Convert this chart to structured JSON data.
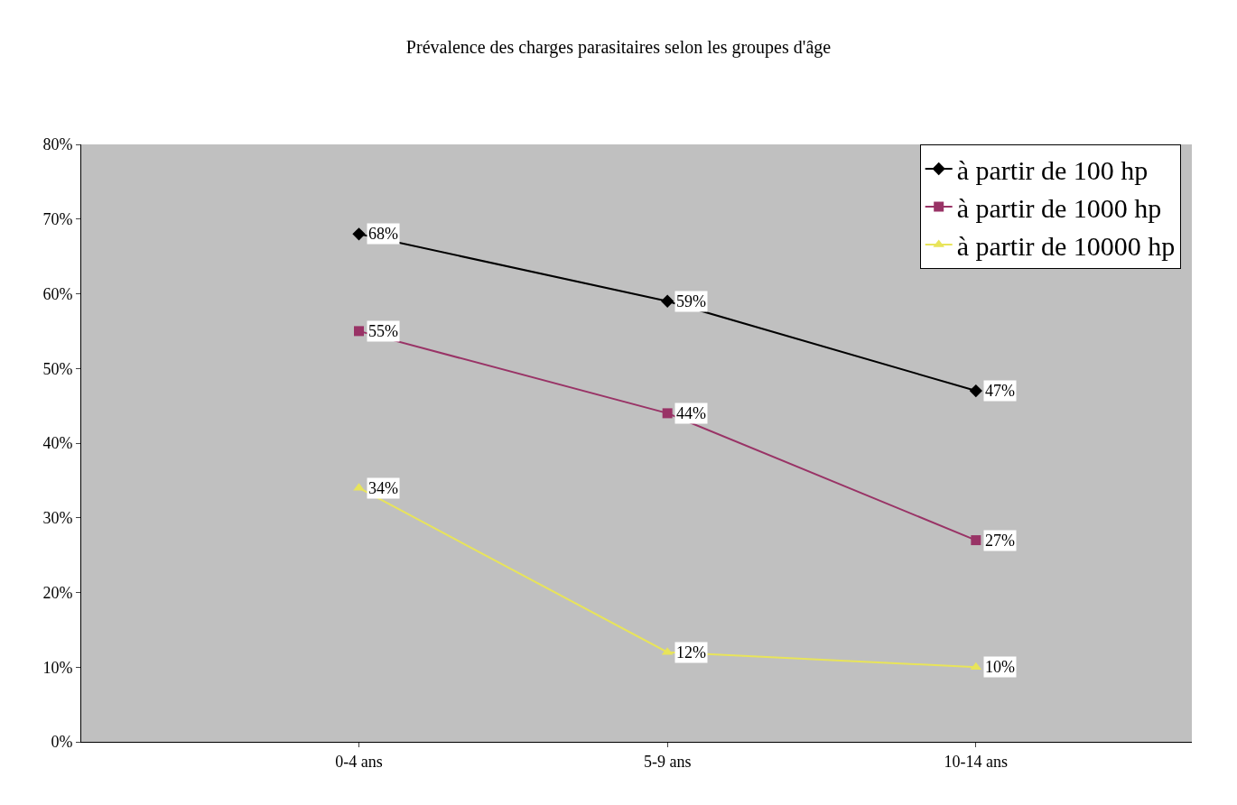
{
  "chart_data": {
    "type": "line",
    "title": "Prévalence des charges parasitaires selon les groupes d'âge",
    "categories": [
      "0-4 ans",
      "5-9 ans",
      "10-14 ans"
    ],
    "series": [
      {
        "name": "à partir de 100 hp",
        "color": "#000000",
        "marker": "diamond",
        "values": [
          68,
          59,
          47
        ],
        "value_labels": [
          "68%",
          "59%",
          "47%"
        ]
      },
      {
        "name": "à partir de 1000 hp",
        "color": "#993366",
        "marker": "square",
        "values": [
          55,
          44,
          27
        ],
        "value_labels": [
          "55%",
          "44%",
          "27%"
        ]
      },
      {
        "name": "à partir de 10000 hp",
        "color": "#e8e45a",
        "marker": "triangle",
        "values": [
          34,
          12,
          10
        ],
        "value_labels": [
          "34%",
          "12%",
          "10%"
        ]
      }
    ],
    "ylim": [
      0,
      80
    ],
    "yticks": [
      {
        "value": 0,
        "label": "0%"
      },
      {
        "value": 10,
        "label": "10%"
      },
      {
        "value": 20,
        "label": "20%"
      },
      {
        "value": 30,
        "label": "30%"
      },
      {
        "value": 40,
        "label": "40%"
      },
      {
        "value": 50,
        "label": "50%"
      },
      {
        "value": 60,
        "label": "60%"
      },
      {
        "value": 70,
        "label": "70%"
      },
      {
        "value": 80,
        "label": "80%"
      }
    ],
    "grid": false,
    "legend": "top right",
    "line_style": "solid"
  }
}
